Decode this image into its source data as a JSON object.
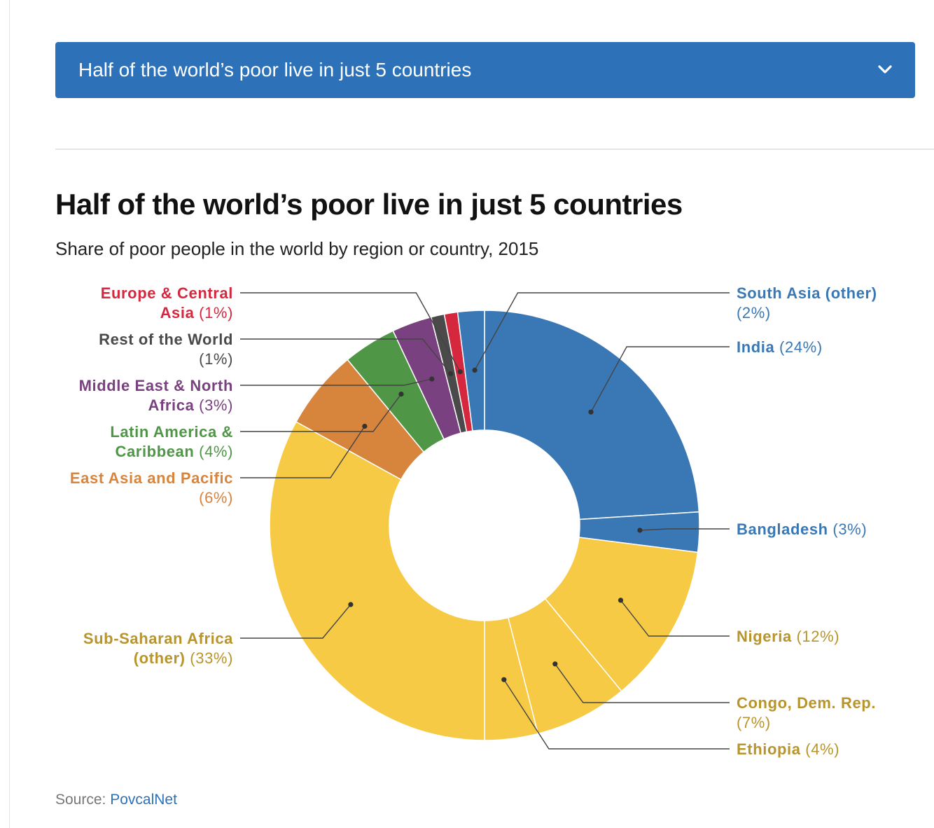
{
  "accordion": {
    "title": "Half of the world’s poor live in just 5 countries"
  },
  "chart": {
    "title": "Half of the world’s poor live in just 5 countries",
    "subtitle": "Share of poor people in the world by region or country, 2015"
  },
  "source": {
    "prefix": "Source: ",
    "link_text": "PovcalNet"
  },
  "colors": {
    "accent": "#2d72b8",
    "south_asia": "#3a78b5",
    "sub_saharan_africa": "#f7ca45",
    "east_asia_pacific": "#d7843d",
    "latin_america": "#4f9647",
    "middle_east": "#7a4180",
    "rest_of_world": "#4a4a4a",
    "europe_central_asia": "#d5283f"
  },
  "chart_data": {
    "type": "pie",
    "title": "Half of the world’s poor live in just 5 countries",
    "subtitle": "Share of poor people in the world by region or country, 2015",
    "unit": "%",
    "slices": [
      {
        "label": "India",
        "value": 24,
        "display": "(24%)",
        "color": "#3a78b5",
        "label_side": "right",
        "lines": [
          [
            "India",
            " (24%)"
          ]
        ]
      },
      {
        "label": "Bangladesh",
        "value": 3,
        "display": "(3%)",
        "color": "#3a78b5",
        "label_side": "right",
        "lines": [
          [
            "Bangladesh",
            " (3%)"
          ]
        ]
      },
      {
        "label": "Nigeria",
        "value": 12,
        "display": "(12%)",
        "color": "#f7ca45",
        "label_side": "right",
        "lines": [
          [
            "Nigeria",
            " (12%)"
          ]
        ]
      },
      {
        "label": "Congo, Dem. Rep.",
        "value": 7,
        "display": "(7%)",
        "color": "#f7ca45",
        "label_side": "right",
        "lines": [
          [
            "Congo, Dem. Rep.",
            ""
          ],
          [
            "",
            "(7%)"
          ]
        ]
      },
      {
        "label": "Ethiopia",
        "value": 4,
        "display": "(4%)",
        "color": "#f7ca45",
        "label_side": "right",
        "lines": [
          [
            "Ethiopia",
            " (4%)"
          ]
        ]
      },
      {
        "label": "Sub-Saharan Africa (other)",
        "value": 33,
        "display": "(33%)",
        "color": "#f7ca45",
        "label_side": "left",
        "lines": [
          [
            "Sub-Saharan Africa",
            ""
          ],
          [
            "(other)",
            " (33%)"
          ]
        ]
      },
      {
        "label": "East Asia and Pacific",
        "value": 6,
        "display": "(6%)",
        "color": "#d7843d",
        "label_side": "left",
        "lines": [
          [
            "East Asia and Pacific",
            ""
          ],
          [
            "",
            "(6%)"
          ]
        ]
      },
      {
        "label": "Latin America & Caribbean",
        "value": 4,
        "display": "(4%)",
        "color": "#4f9647",
        "label_side": "left",
        "lines": [
          [
            "Latin America &",
            ""
          ],
          [
            "Caribbean",
            " (4%)"
          ]
        ]
      },
      {
        "label": "Middle East & North Africa",
        "value": 3,
        "display": "(3%)",
        "color": "#7a4180",
        "label_side": "left",
        "lines": [
          [
            "Middle East & North",
            ""
          ],
          [
            "Africa",
            " (3%)"
          ]
        ]
      },
      {
        "label": "Rest of the World",
        "value": 1,
        "display": "(1%)",
        "color": "#4a4a4a",
        "label_side": "left",
        "lines": [
          [
            "Rest of the World",
            ""
          ],
          [
            "",
            "(1%)"
          ]
        ]
      },
      {
        "label": "Europe & Central Asia",
        "value": 1,
        "display": "(1%)",
        "color": "#d5283f",
        "label_side": "left",
        "lines": [
          [
            "Europe & Central",
            ""
          ],
          [
            "Asia",
            " (1%)"
          ]
        ]
      },
      {
        "label": "South Asia (other)",
        "value": 2,
        "display": "(2%)",
        "color": "#3a78b5",
        "label_side": "right",
        "lines": [
          [
            "South Asia (other)",
            ""
          ],
          [
            "",
            "(2%)"
          ]
        ]
      }
    ]
  }
}
